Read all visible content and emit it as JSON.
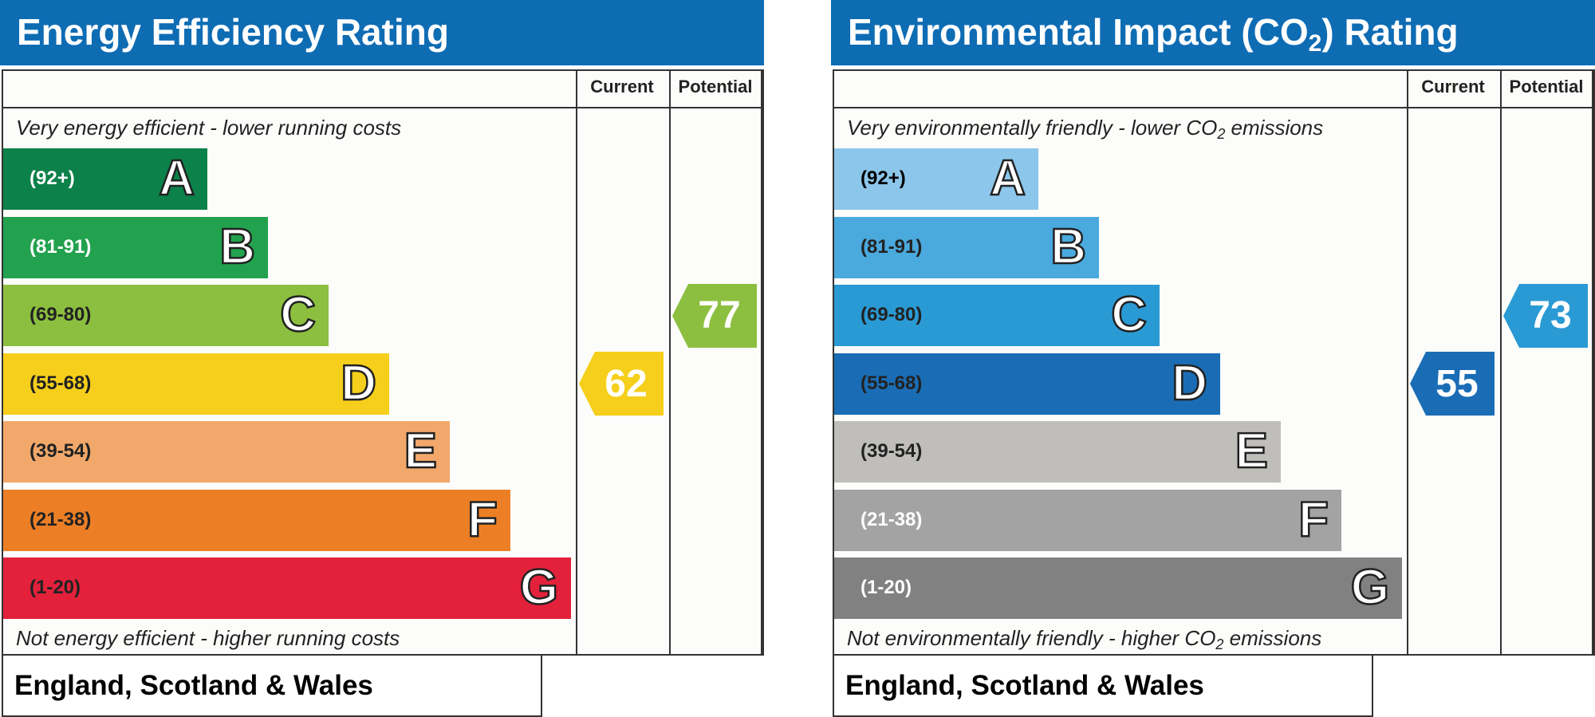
{
  "chart_data": [
    {
      "type": "bar",
      "title": "Energy Efficiency Rating",
      "column_headers": [
        "Current",
        "Potential"
      ],
      "top_caption": "Very energy efficient - lower running costs",
      "bottom_caption": "Not energy efficient - higher running costs",
      "footer": "England, Scotland & Wales",
      "bands": [
        {
          "letter": "A",
          "range": "(92+)",
          "color": "#0c8149",
          "text_color": "#ffffff"
        },
        {
          "letter": "B",
          "range": "(81-91)",
          "color": "#22a24e",
          "text_color": "#ffffff"
        },
        {
          "letter": "C",
          "range": "(69-80)",
          "color": "#8cbf3f",
          "text_color": "#222222"
        },
        {
          "letter": "D",
          "range": "(55-68)",
          "color": "#f5cf1b",
          "text_color": "#222222"
        },
        {
          "letter": "E",
          "range": "(39-54)",
          "color": "#f1a86a",
          "text_color": "#222222"
        },
        {
          "letter": "F",
          "range": "(21-38)",
          "color": "#ec7f26",
          "text_color": "#222222"
        },
        {
          "letter": "G",
          "range": "(1-20)",
          "color": "#e3213b",
          "text_color": "#222222"
        }
      ],
      "current": {
        "value": "62",
        "band": "D",
        "color": "#f5cf1b"
      },
      "potential": {
        "value": "77",
        "band": "C",
        "color": "#8cbf3f"
      }
    },
    {
      "type": "bar",
      "title_main": "Environmental Impact (CO",
      "title_sub": "2",
      "title_end": ") Rating",
      "column_headers": [
        "Current",
        "Potential"
      ],
      "top_caption_main": "Very environmentally friendly - lower CO",
      "top_caption_sub": "2",
      "top_caption_end": " emissions",
      "bottom_caption_main": "Not environmentally friendly - higher CO",
      "bottom_caption_sub": "2",
      "bottom_caption_end": " emissions",
      "footer": "England, Scotland & Wales",
      "bands": [
        {
          "letter": "A",
          "range": "(92+)",
          "color": "#8cc6ea",
          "text_color": "#000000"
        },
        {
          "letter": "B",
          "range": "(81-91)",
          "color": "#4aa9dd",
          "text_color": "#222222"
        },
        {
          "letter": "C",
          "range": "(69-80)",
          "color": "#2a9ad4",
          "text_color": "#222222"
        },
        {
          "letter": "D",
          "range": "(55-68)",
          "color": "#1a6db5",
          "text_color": "#222222"
        },
        {
          "letter": "E",
          "range": "(39-54)",
          "color": "#bfbebb",
          "text_color": "#222222"
        },
        {
          "letter": "F",
          "range": "(21-38)",
          "color": "#a3a3a3",
          "text_color": "#ffffff"
        },
        {
          "letter": "G",
          "range": "(1-20)",
          "color": "#818181",
          "text_color": "#ffffff"
        }
      ],
      "current": {
        "value": "55",
        "band": "D",
        "color": "#1a6db5"
      },
      "potential": {
        "value": "73",
        "band": "C",
        "color": "#2a9ad4"
      }
    }
  ]
}
